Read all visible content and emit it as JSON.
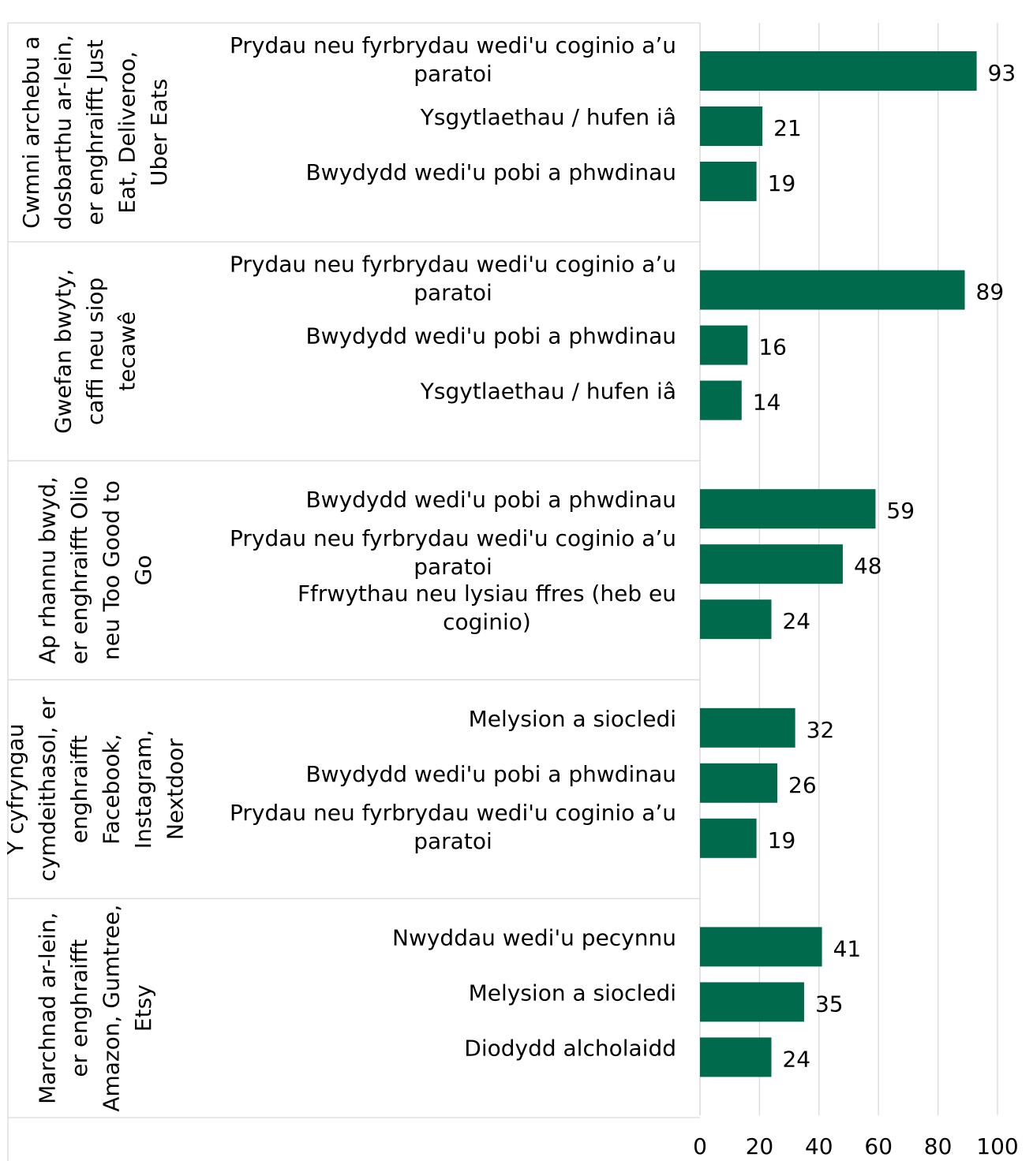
{
  "chart_data": {
    "type": "bar",
    "orientation": "horizontal",
    "title": "",
    "xlabel": "",
    "ylabel": "",
    "xlim": [
      0,
      100
    ],
    "x_ticks": [
      0,
      20,
      40,
      60,
      80,
      100
    ],
    "grid": true,
    "legend": "none",
    "bar_color": "#006a4d",
    "groups": [
      {
        "label": [
          "Cwmni archebu a",
          "dosbarthu ar-lein,",
          "er enghraifft Just",
          "Eat, Deliveroo,",
          "Uber Eats"
        ],
        "bars": [
          {
            "label": [
              "Prydau neu fyrbrydau wedi'u coginio a’u",
              "paratoi"
            ],
            "value": 93
          },
          {
            "label": [
              "Ysgytlaethau / hufen iâ"
            ],
            "value": 21
          },
          {
            "label": [
              "Bwydydd wedi'u pobi a phwdinau"
            ],
            "value": 19
          }
        ]
      },
      {
        "label": [
          "Gwefan bwyty,",
          "caffi neu siop",
          "tecawê"
        ],
        "bars": [
          {
            "label": [
              "Prydau neu fyrbrydau wedi'u coginio a’u",
              "paratoi"
            ],
            "value": 89
          },
          {
            "label": [
              "Bwydydd wedi'u pobi a phwdinau"
            ],
            "value": 16
          },
          {
            "label": [
              "Ysgytlaethau / hufen iâ"
            ],
            "value": 14
          }
        ]
      },
      {
        "label": [
          "Ap rhannu bwyd,",
          "er enghraifft Olio",
          "neu Too Good to",
          "Go"
        ],
        "bars": [
          {
            "label": [
              "Bwydydd wedi'u pobi a phwdinau"
            ],
            "value": 59
          },
          {
            "label": [
              "Prydau neu fyrbrydau wedi'u coginio a’u",
              "paratoi"
            ],
            "value": 48
          },
          {
            "label": [
              "Ffrwythau neu lysiau ffres (heb eu",
              "coginio)"
            ],
            "value": 24
          }
        ]
      },
      {
        "label": [
          "Y cyfryngau",
          "cymdeithasol, er",
          "enghraifft",
          "Facebook,",
          "Instagram,",
          "Nextdoor"
        ],
        "bars": [
          {
            "label": [
              "Melysion a siocledi"
            ],
            "value": 32
          },
          {
            "label": [
              "Bwydydd wedi'u pobi a phwdinau"
            ],
            "value": 26
          },
          {
            "label": [
              "Prydau neu fyrbrydau wedi'u coginio a’u",
              "paratoi"
            ],
            "value": 19
          }
        ]
      },
      {
        "label": [
          "Marchnad ar-lein,",
          "er enghraifft",
          "Amazon, Gumtree,",
          "Etsy"
        ],
        "bars": [
          {
            "label": [
              "Nwyddau wedi'u pecynnu"
            ],
            "value": 41
          },
          {
            "label": [
              "Melysion a siocledi"
            ],
            "value": 35
          },
          {
            "label": [
              "Diodydd alcholaidd"
            ],
            "value": 24
          }
        ]
      }
    ]
  }
}
